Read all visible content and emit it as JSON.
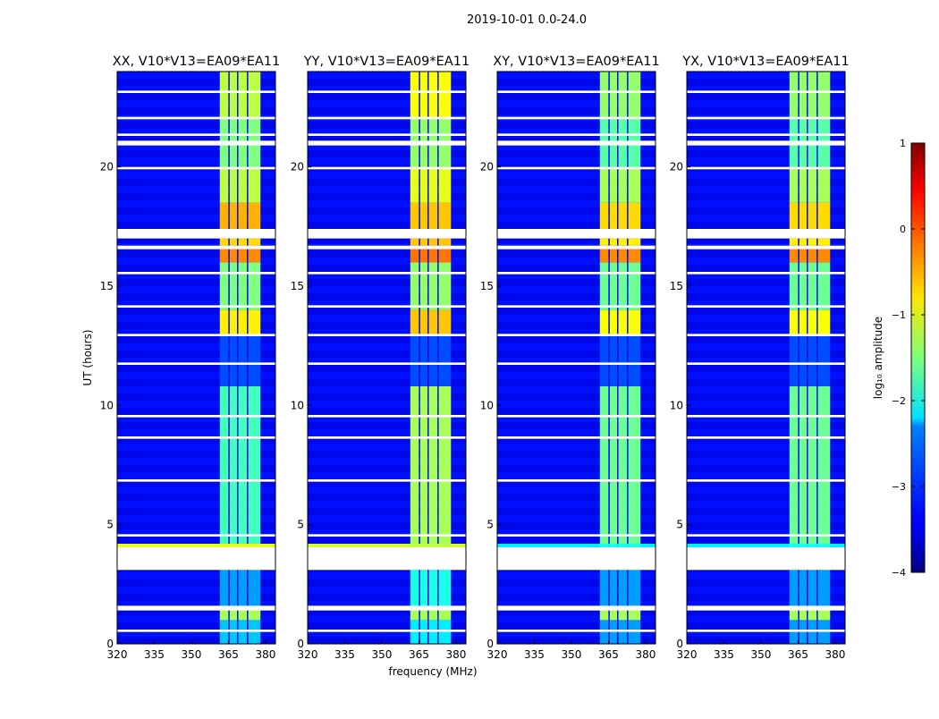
{
  "chart_data": {
    "type": "heatmap",
    "suptitle": "2019-10-01 0.0-24.0",
    "xlabel": "frequency (MHz)",
    "ylabel": "UT (hours)",
    "xlim": [
      320,
      384
    ],
    "ylim": [
      0,
      24
    ],
    "xticks": [
      "320",
      "335",
      "350",
      "365",
      "380"
    ],
    "yticks": [
      "0",
      "5",
      "10",
      "15",
      "20"
    ],
    "colorbar": {
      "label": "log₁₀ amplitude",
      "range": [
        -4,
        1
      ],
      "ticks": [
        "1",
        "0",
        "−1",
        "−2",
        "−3",
        "−4"
      ],
      "colormap": "jet"
    },
    "band_edges_mhz": [
      [
        361.5,
        365.5
      ],
      [
        365.5,
        369
      ],
      [
        369,
        373
      ],
      [
        373,
        378.5
      ]
    ],
    "background_log_amplitude": -3.3,
    "flagged_hours": [
      [
        3.1,
        4.05
      ],
      [
        1.4,
        1.6
      ],
      [
        0.5,
        0.6
      ],
      [
        11.7,
        11.8
      ],
      [
        16.55,
        16.7
      ],
      [
        17.0,
        17.4
      ],
      [
        19.9,
        20.0
      ],
      [
        20.9,
        21.1
      ],
      [
        21.3,
        21.4
      ],
      [
        22.0,
        22.1
      ],
      [
        23.1,
        23.2
      ],
      [
        12.9,
        13.0
      ],
      [
        14.1,
        14.2
      ],
      [
        15.5,
        15.6
      ],
      [
        8.6,
        8.7
      ],
      [
        9.5,
        9.6
      ],
      [
        6.8,
        6.9
      ],
      [
        4.5,
        4.6
      ]
    ],
    "panels": [
      {
        "title": "XX, V10*V13=EA09*EA11",
        "band_segments": [
          [
            0,
            1,
            -2.4
          ],
          [
            1,
            1.5,
            -1.3
          ],
          [
            1.5,
            3.1,
            -2.6
          ],
          [
            4.05,
            4.2,
            -1.0
          ],
          [
            4.2,
            10.8,
            -1.8
          ],
          [
            10.8,
            11.7,
            -3.0
          ],
          [
            11.8,
            12.9,
            -3.0
          ],
          [
            12.9,
            14,
            -0.8
          ],
          [
            14,
            16,
            -1.5
          ],
          [
            16,
            16.55,
            -0.3
          ],
          [
            16.7,
            17,
            -0.7
          ],
          [
            17.4,
            18.5,
            -0.5
          ],
          [
            18.5,
            20,
            -1.2
          ],
          [
            20,
            22,
            -1.5
          ],
          [
            22,
            24,
            -1.2
          ]
        ],
        "wide_segments": [
          [
            4.05,
            4.2,
            -1.0
          ]
        ]
      },
      {
        "title": "YY, V10*V13=EA09*EA11",
        "band_segments": [
          [
            0,
            1,
            -2.2
          ],
          [
            1,
            1.5,
            -1.3
          ],
          [
            1.5,
            3.1,
            -2.0
          ],
          [
            4.05,
            4.2,
            -1.2
          ],
          [
            4.2,
            10.8,
            -1.3
          ],
          [
            10.8,
            11.7,
            -3.0
          ],
          [
            11.8,
            12.9,
            -3.0
          ],
          [
            12.9,
            14,
            -0.6
          ],
          [
            14,
            16,
            -1.4
          ],
          [
            16,
            16.55,
            -0.2
          ],
          [
            16.7,
            17,
            -0.6
          ],
          [
            17.4,
            18.5,
            -0.6
          ],
          [
            18.5,
            20,
            -1.0
          ],
          [
            20,
            22,
            -1.4
          ],
          [
            22,
            24,
            -0.9
          ]
        ],
        "wide_segments": [
          [
            4.05,
            4.2,
            -1.1
          ]
        ]
      },
      {
        "title": "XY, V10*V13=EA09*EA11",
        "band_segments": [
          [
            0,
            1,
            -2.6
          ],
          [
            1,
            1.5,
            -1.3
          ],
          [
            1.5,
            3.1,
            -2.6
          ],
          [
            4.05,
            4.2,
            -2.0
          ],
          [
            4.2,
            10.8,
            -1.6
          ],
          [
            10.8,
            11.7,
            -3.0
          ],
          [
            11.8,
            12.9,
            -3.0
          ],
          [
            12.9,
            14,
            -0.9
          ],
          [
            14,
            16,
            -1.6
          ],
          [
            16,
            16.55,
            -0.3
          ],
          [
            16.7,
            17,
            -0.8
          ],
          [
            17.4,
            18.5,
            -0.7
          ],
          [
            18.5,
            20,
            -1.3
          ],
          [
            20,
            22,
            -1.7
          ],
          [
            22,
            24,
            -1.4
          ]
        ],
        "wide_segments": [
          [
            4.05,
            4.2,
            -2.2
          ]
        ]
      },
      {
        "title": "YX, V10*V13=EA09*EA11",
        "band_segments": [
          [
            0,
            1,
            -2.6
          ],
          [
            1,
            1.5,
            -1.3
          ],
          [
            1.5,
            3.1,
            -2.6
          ],
          [
            4.05,
            4.2,
            -2.0
          ],
          [
            4.2,
            10.8,
            -1.6
          ],
          [
            10.8,
            11.7,
            -3.0
          ],
          [
            11.8,
            12.9,
            -3.0
          ],
          [
            12.9,
            14,
            -0.9
          ],
          [
            14,
            16,
            -1.6
          ],
          [
            16,
            16.55,
            -0.3
          ],
          [
            16.7,
            17,
            -0.8
          ],
          [
            17.4,
            18.5,
            -0.7
          ],
          [
            18.5,
            20,
            -1.3
          ],
          [
            20,
            22,
            -1.7
          ],
          [
            22,
            24,
            -1.4
          ]
        ],
        "wide_segments": [
          [
            4.05,
            4.2,
            -2.2
          ]
        ]
      }
    ]
  }
}
